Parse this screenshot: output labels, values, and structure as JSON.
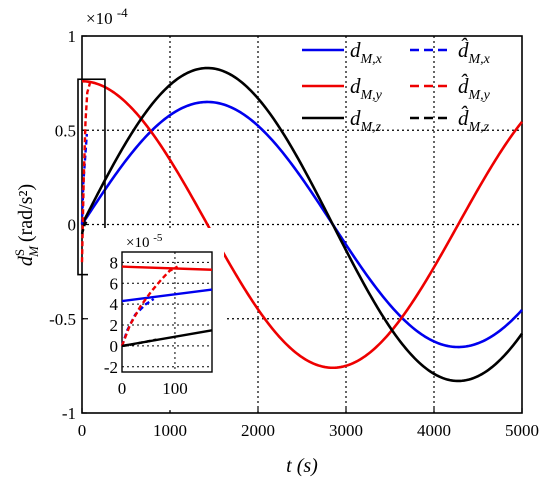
{
  "chart_data": {
    "type": "line",
    "xlabel": "t (s)",
    "ylabel_main": "d",
    "ylabel_sub": "M",
    "ylabel_sup": "S",
    "ylabel_units": "(rad/s²)",
    "exponent_label": "×10",
    "exponent_power": "-4",
    "xlim": [
      0,
      5000
    ],
    "ylim": [
      -1,
      1
    ],
    "xticks": [
      0,
      1000,
      2000,
      3000,
      4000,
      5000
    ],
    "xtick_labels": [
      "0",
      "1000",
      "2000",
      "3000",
      "4000",
      "5000"
    ],
    "yticks": [
      -1,
      -0.5,
      0,
      0.5,
      1
    ],
    "ytick_labels": [
      "-1",
      "-0.5",
      "0",
      "0.5",
      "1"
    ],
    "grid": true,
    "grid_style": "dotted",
    "legend_placement": "top-right",
    "series": [
      {
        "name": "d_M,x",
        "legend_main": "d",
        "legend_sub": "M,x",
        "color": "#0000ee",
        "style": "solid",
        "model": {
          "amplitude": 0.65,
          "period": 5700,
          "phase": 0
        }
      },
      {
        "name": "d_M,y",
        "legend_main": "d",
        "legend_sub": "M,y",
        "color": "#ee0000",
        "style": "solid",
        "model": {
          "amplitude": 0.76,
          "period": 5700,
          "phase": 1.5708
        }
      },
      {
        "name": "d_M,z",
        "legend_main": "d",
        "legend_sub": "M,z",
        "color": "#000000",
        "style": "solid",
        "model": {
          "amplitude": 0.83,
          "period": 5700,
          "phase": 0
        }
      },
      {
        "name": "d̂_M,x",
        "legend_main": "d̂",
        "legend_sub": "M,x",
        "color": "#0000ee",
        "style": "dashed"
      },
      {
        "name": "d̂_M,y",
        "legend_main": "d̂",
        "legend_sub": "M,y",
        "color": "#ee0000",
        "style": "dashed"
      },
      {
        "name": "d̂_M,z",
        "legend_main": "d̂",
        "legend_sub": "M,z",
        "color": "#000000",
        "style": "dashed"
      }
    ],
    "inset": {
      "exponent_label": "×10",
      "exponent_power": "-5",
      "xlim": [
        0,
        170
      ],
      "ylim": [
        -2.5,
        9
      ],
      "xticks": [
        0,
        100
      ],
      "xtick_labels": [
        "0",
        "100"
      ],
      "yticks": [
        -2,
        0,
        2,
        4,
        6,
        8
      ],
      "ytick_labels": [
        "-2",
        "0",
        "2",
        "4",
        "6",
        "8"
      ],
      "highlight_xlim": [
        0,
        170
      ],
      "highlight_ylim": [
        -0.25,
        0.76
      ],
      "series": [
        {
          "name": "d_M,x",
          "color": "#0000ee",
          "style": "solid",
          "x": [
            0,
            170
          ],
          "y": [
            4.3,
            5.4
          ]
        },
        {
          "name": "d_M,y",
          "color": "#ee0000",
          "style": "solid",
          "x": [
            0,
            170
          ],
          "y": [
            7.6,
            7.3
          ]
        },
        {
          "name": "d_M,z",
          "color": "#000000",
          "style": "solid",
          "x": [
            0,
            170
          ],
          "y": [
            0,
            1.5
          ]
        },
        {
          "name": "d̂_M,x",
          "color": "#0000ee",
          "style": "dashed",
          "x": [
            0,
            10,
            25,
            45,
            60
          ],
          "y": [
            0,
            1.5,
            3.0,
            4.0,
            4.5
          ]
        },
        {
          "name": "d̂_M,y",
          "color": "#ee0000",
          "style": "dashed",
          "x": [
            0,
            15,
            35,
            55,
            75,
            90,
            105
          ],
          "y": [
            0,
            2.0,
            3.8,
            5.2,
            6.4,
            7.2,
            7.6
          ]
        },
        {
          "name": "d̂_M,z",
          "color": "#000000",
          "style": "dashed",
          "x": [
            0,
            15,
            30,
            50,
            65
          ],
          "y": [
            0,
            0.1,
            0.25,
            0.45,
            0.6
          ]
        }
      ]
    }
  }
}
